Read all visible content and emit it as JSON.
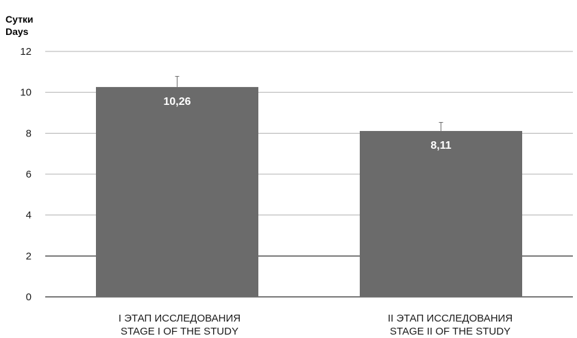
{
  "chart_data": {
    "type": "bar",
    "ylabel": [
      "Сутки",
      "Days"
    ],
    "categories": [
      [
        "I ЭТАП ИССЛЕДОВАНИЯ",
        "STAGE I OF THE STUDY"
      ],
      [
        "II ЭТАП ИССЛЕДОВАНИЯ",
        "STAGE II OF THE STUDY"
      ]
    ],
    "values": [
      10.26,
      8.11
    ],
    "value_labels": [
      "10,26",
      "8,11"
    ],
    "error_plus": [
      0.52,
      0.42
    ],
    "ylim": [
      0,
      12
    ],
    "yticks": [
      0,
      2,
      4,
      6,
      8,
      10,
      12
    ],
    "grid": true,
    "bar_color": "#6b6b6b",
    "label_color": "#ffffff"
  }
}
